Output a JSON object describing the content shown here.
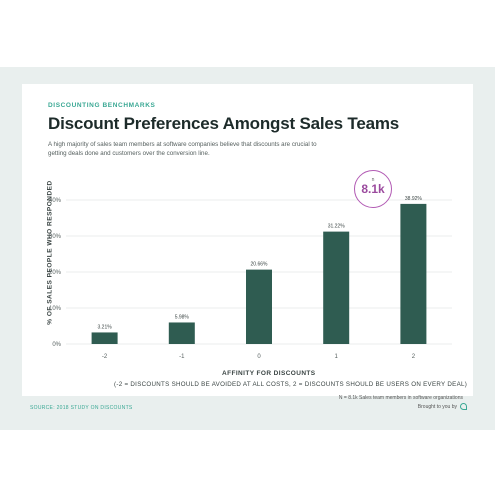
{
  "eyebrow": "DISCOUNTING BENCHMARKS",
  "title": "Discount Preferences Amongst Sales Teams",
  "subtitle": "A high majority of sales team members at software companies believe that discounts are crucial to getting deals done and customers over the conversion line.",
  "callout": {
    "label": "n",
    "value": "8.1k",
    "color": "#9b4a9e"
  },
  "axis_note": "(-2 = DISCOUNTS SHOULD BE AVOIDED AT ALL COSTS, 2 = DISCOUNTS SHOULD BE USERS ON EVERY DEAL)",
  "footnote": "N = 8.1k Sales team members in software organizations",
  "source": "SOURCE: 2018 STUDY ON DISCOUNTS",
  "brought_by": "Brought to you by",
  "colors": {
    "bar": "#2f5c51",
    "accent": "#3aa894",
    "grid": "#e4e8e7"
  },
  "chart_data": {
    "type": "bar",
    "categories": [
      "-2",
      "-1",
      "0",
      "1",
      "2"
    ],
    "values": [
      3.21,
      5.98,
      20.66,
      31.22,
      38.92
    ],
    "value_labels": [
      "3.21%",
      "5.98%",
      "20.66%",
      "31.22%",
      "38.92%"
    ],
    "xlabel": "AFFINITY FOR DISCOUNTS",
    "ylabel": "% OF SALES PEOPLE WHO RESPONDED",
    "ylim": [
      0,
      40
    ],
    "yticks": [
      "0%",
      "10%",
      "20%",
      "30%",
      "40%"
    ],
    "grid": true
  }
}
